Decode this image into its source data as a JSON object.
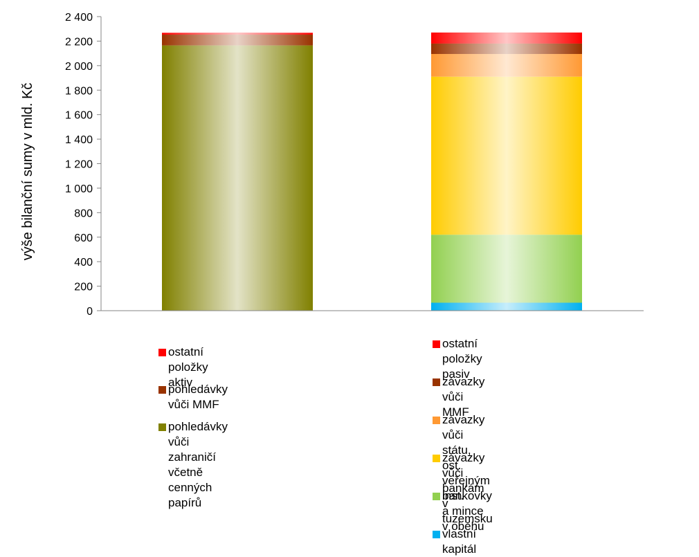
{
  "chart_data": {
    "type": "bar",
    "stacked": true,
    "title": "",
    "xlabel": "",
    "ylabel": "výše bilanční sumy v mld. Kč",
    "ylim": [
      0,
      2400
    ],
    "yticks": [
      0,
      200,
      400,
      600,
      800,
      1000,
      1200,
      1400,
      1600,
      1800,
      2000,
      2200,
      2400
    ],
    "ytick_labels": [
      "0",
      "200",
      "400",
      "600",
      "800",
      "1 000",
      "1 200",
      "1 400",
      "1 600",
      "1 800",
      "2 000",
      "2 200",
      "2 400"
    ],
    "grid": false,
    "bars": [
      {
        "legend_group": "aktiva",
        "segments": [
          {
            "name": "pohledávky vůči zahraničí\nvčetně cenných papírů",
            "value": 2165,
            "color": "#808000"
          },
          {
            "name": "pohledávky vůči MMF",
            "value": 88,
            "color": "#993300"
          },
          {
            "name": "ostatní položky aktiv",
            "value": 15,
            "color": "#ff0000"
          }
        ]
      },
      {
        "legend_group": "pasiva",
        "segments": [
          {
            "name": "vlastní kapitál",
            "value": 65,
            "color": "#00b0f0"
          },
          {
            "name": "bankovky a mince v oběhu",
            "value": 555,
            "color": "#92d050"
          },
          {
            "name": "závazky vůči bankám v tuzemsku",
            "value": 1290,
            "color": "#ffcc00"
          },
          {
            "name": "závazky vůči státu, ost. veřejným inst.",
            "value": 185,
            "color": "#ff9933"
          },
          {
            "name": "závazky vůči MMF",
            "value": 85,
            "color": "#993300"
          },
          {
            "name": "ostatní položky pasiv",
            "value": 90,
            "color": "#ff0000"
          }
        ]
      }
    ]
  },
  "legend": {
    "left": [
      {
        "label": "ostatní položky aktiv",
        "color": "#ff0000"
      },
      {
        "label": "pohledávky vůči MMF",
        "color": "#993300"
      },
      {
        "label": "pohledávky vůči zahraničí\nvčetně cenných papírů",
        "color": "#808000"
      }
    ],
    "right": [
      {
        "label": "ostatní položky pasiv",
        "color": "#ff0000"
      },
      {
        "label": "závazky vůči MMF",
        "color": "#993300"
      },
      {
        "label": "závazky vůči státu, ost. veřejným inst.",
        "color": "#ff9933"
      },
      {
        "label": "závazky vůči bankám v tuzemsku",
        "color": "#ffcc00"
      },
      {
        "label": "bankovky a mince v oběhu",
        "color": "#92d050"
      },
      {
        "label": "vlastní kapitál",
        "color": "#00b0f0"
      }
    ]
  }
}
